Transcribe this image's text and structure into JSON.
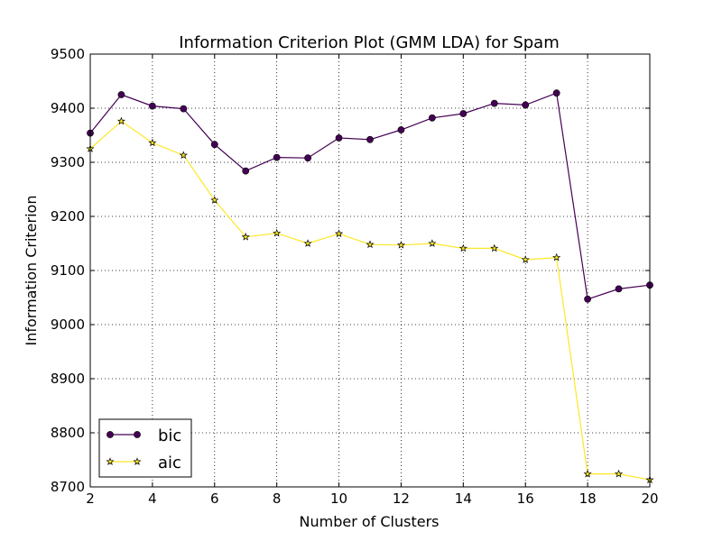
{
  "chart_data": {
    "type": "line",
    "title": "Information Criterion Plot (GMM LDA) for Spam",
    "xlabel": "Number of Clusters",
    "ylabel": "Information Criterion",
    "xlim": [
      2,
      20
    ],
    "ylim": [
      8700,
      9500
    ],
    "xticks": [
      2,
      4,
      6,
      8,
      10,
      12,
      14,
      16,
      18,
      20
    ],
    "yticks": [
      8700,
      8800,
      8900,
      9000,
      9100,
      9200,
      9300,
      9400,
      9500
    ],
    "grid": true,
    "legend_position": "lower-left",
    "x": [
      2,
      3,
      4,
      5,
      6,
      7,
      8,
      9,
      10,
      11,
      12,
      13,
      14,
      15,
      16,
      17,
      18,
      19,
      20
    ],
    "series": [
      {
        "name": "bic",
        "color": "#440154",
        "marker": "circle",
        "values": [
          9354,
          9425,
          9404,
          9399,
          9333,
          9284,
          9309,
          9308,
          9345,
          9342,
          9360,
          9382,
          9390,
          9409,
          9406,
          9428,
          9047,
          9066,
          9073
        ]
      },
      {
        "name": "aic",
        "color": "#fde725",
        "marker": "star",
        "values": [
          9325,
          9376,
          9336,
          9313,
          9230,
          9162,
          9169,
          9150,
          9168,
          9148,
          9147,
          9150,
          9141,
          9141,
          9120,
          9124,
          8724,
          8724,
          8713
        ]
      }
    ]
  }
}
